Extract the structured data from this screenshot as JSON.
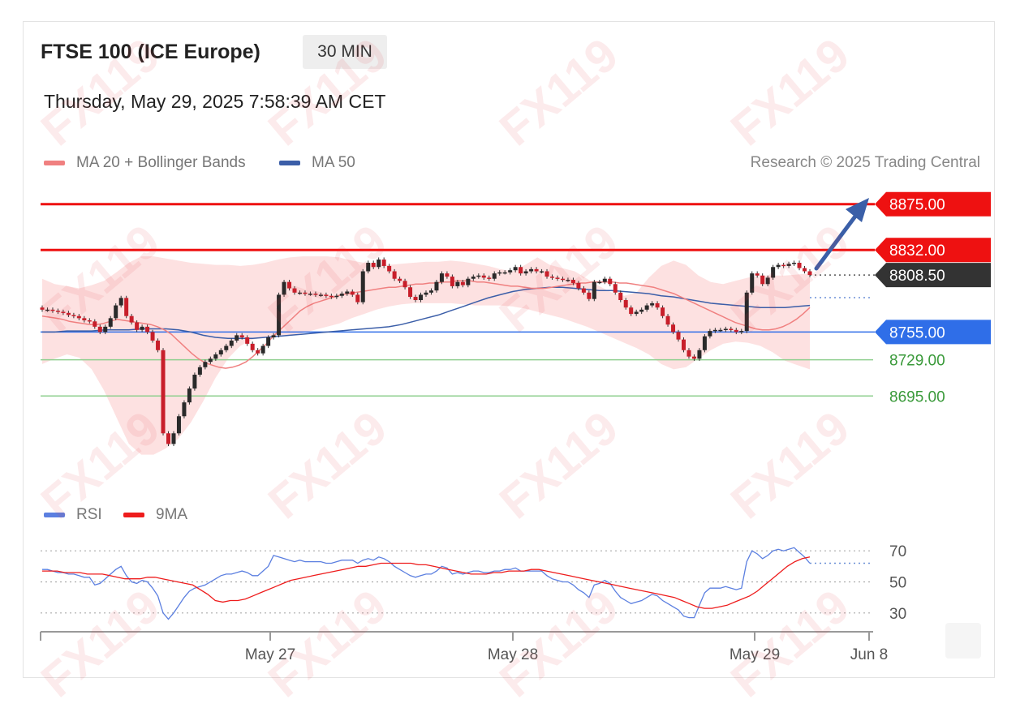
{
  "header": {
    "title": "FTSE 100 (ICE Europe)",
    "timeframe": "30 MIN",
    "datetime": "Thursday, May 29, 2025 7:58:39 AM CET",
    "research": "Research © 2025 Trading Central",
    "watermark": "FX119"
  },
  "legend": {
    "ma20": {
      "label": "MA 20 + Bollinger Bands",
      "color": "#f08080"
    },
    "ma50": {
      "label": "MA 50",
      "color": "#3b5ea8"
    },
    "rsi": {
      "label": "RSI",
      "color": "#5b7fe0"
    },
    "rsi_ma": {
      "label": "9MA",
      "color": "#ee1c1c"
    }
  },
  "chart_data": [
    {
      "type": "candlestick",
      "ylim": [
        8610,
        8890
      ],
      "x_ticks": [
        "May 27",
        "May 28",
        "May 29",
        "Jun 8"
      ],
      "levels": [
        {
          "value": 8875.0,
          "label": "8875.00",
          "kind": "resistance",
          "color": "#ee1111"
        },
        {
          "value": 8832.0,
          "label": "8832.00",
          "kind": "resistance",
          "color": "#ee1111"
        },
        {
          "value": 8808.5,
          "label": "8808.50",
          "kind": "last",
          "color": "#333333"
        },
        {
          "value": 8755.0,
          "label": "8755.00",
          "kind": "pivot",
          "color": "#2f6ee8"
        },
        {
          "value": 8729.0,
          "label": "8729.00",
          "kind": "support",
          "color": "#3a9a3a"
        },
        {
          "value": 8695.0,
          "label": "8695.00",
          "kind": "support",
          "color": "#3a9a3a"
        }
      ],
      "closes": [
        8776,
        8776,
        8775,
        8774,
        8773,
        8771,
        8770,
        8768,
        8766,
        8765,
        8760,
        8755,
        8760,
        8768,
        8780,
        8787,
        8770,
        8764,
        8757,
        8760,
        8755,
        8747,
        8738,
        8660,
        8650,
        8660,
        8676,
        8689,
        8702,
        8715,
        8722,
        8727,
        8730,
        8734,
        8738,
        8742,
        8747,
        8752,
        8750,
        8744,
        8738,
        8735,
        8742,
        8750,
        8752,
        8790,
        8802,
        8796,
        8792,
        8792,
        8791,
        8791,
        8790,
        8790,
        8789,
        8788,
        8789,
        8791,
        8793,
        8790,
        8783,
        8812,
        8820,
        8816,
        8823,
        8817,
        8812,
        8805,
        8803,
        8797,
        8788,
        8785,
        8790,
        8792,
        8794,
        8802,
        8810,
        8807,
        8798,
        8802,
        8799,
        8805,
        8807,
        8808,
        8806,
        8805,
        8810,
        8811,
        8811,
        8813,
        8816,
        8810,
        8812,
        8814,
        8812,
        8812,
        8807,
        8806,
        8805,
        8804,
        8804,
        8801,
        8796,
        8792,
        8786,
        8802,
        8802,
        8805,
        8800,
        8792,
        8785,
        8778,
        8772,
        8774,
        8776,
        8780,
        8782,
        8778,
        8770,
        8762,
        8755,
        8748,
        8738,
        8732,
        8730,
        8738,
        8751,
        8756,
        8757,
        8757,
        8758,
        8757,
        8755,
        8756,
        8792,
        8810,
        8808,
        8800,
        8806,
        8816,
        8818,
        8817,
        8819,
        8820,
        8815,
        8812,
        8808.5
      ],
      "ma20": [
        8770,
        8769,
        8768,
        8767,
        8765,
        8764,
        8763,
        8762,
        8762,
        8763,
        8765,
        8767,
        8766,
        8765,
        8764,
        8763,
        8762,
        8760,
        8757,
        8753,
        8747,
        8741,
        8735,
        8730,
        8726,
        8724,
        8722,
        8721,
        8722,
        8724,
        8727,
        8732,
        8738,
        8744,
        8751,
        8757,
        8763,
        8769,
        8775,
        8779,
        8782,
        8784,
        8786,
        8788,
        8790,
        8791,
        8792,
        8793,
        8794,
        8795,
        8796,
        8797,
        8797,
        8798,
        8799,
        8800,
        8800,
        8801,
        8801,
        8802,
        8802,
        8803,
        8803,
        8803,
        8802,
        8802,
        8801,
        8800,
        8799,
        8798,
        8798,
        8797,
        8796,
        8796,
        8796,
        8797,
        8798,
        8799,
        8800,
        8801,
        8801,
        8802,
        8802,
        8802,
        8802,
        8801,
        8801,
        8800,
        8799,
        8798,
        8797,
        8795,
        8793,
        8791,
        8788,
        8785,
        8782,
        8779,
        8776,
        8773,
        8770,
        8767,
        8764,
        8762,
        8760,
        8758,
        8757,
        8757,
        8758,
        8760,
        8763,
        8767,
        8772,
        8778
      ],
      "ma50": [
        8755,
        8755,
        8756,
        8756,
        8756,
        8757,
        8757,
        8757,
        8758,
        8758,
        8758,
        8757,
        8755,
        8752,
        8750,
        8749,
        8749,
        8749,
        8750,
        8751,
        8752,
        8753,
        8754,
        8755,
        8756,
        8757,
        8758,
        8759,
        8760,
        8762,
        8765,
        8768,
        8771,
        8775,
        8779,
        8783,
        8787,
        8790,
        8793,
        8795,
        8796,
        8797,
        8797,
        8796,
        8795,
        8794,
        8794,
        8793,
        8792,
        8791,
        8789,
        8788,
        8786,
        8784,
        8782,
        8781,
        8780,
        8779,
        8778,
        8778,
        8778,
        8779,
        8780
      ],
      "bollinger_upper": [
        8805,
        8800,
        8798,
        8796,
        8799,
        8803,
        8811,
        8820,
        8826,
        8826,
        8824,
        8822,
        8820,
        8819,
        8818,
        8818,
        8817,
        8818,
        8820,
        8823,
        8825,
        8826,
        8826,
        8826,
        8825,
        8822,
        8820,
        8818,
        8818,
        8819,
        8820,
        8821,
        8821,
        8822,
        8821,
        8819,
        8817,
        8814,
        8812,
        8818,
        8825,
        8818,
        8815,
        8812,
        8805,
        8798,
        8792,
        8789,
        8792,
        8806,
        8817,
        8822,
        8818,
        8808,
        8802,
        8800,
        8803,
        8806,
        8808,
        8808,
        8808,
        8809,
        8810
      ],
      "bollinger_lower": [
        8725,
        8730,
        8734,
        8731,
        8720,
        8700,
        8675,
        8650,
        8640,
        8640,
        8646,
        8655,
        8670,
        8690,
        8712,
        8730,
        8742,
        8748,
        8750,
        8752,
        8752,
        8754,
        8757,
        8760,
        8763,
        8768,
        8772,
        8776,
        8779,
        8781,
        8782,
        8782,
        8782,
        8782,
        8781,
        8780,
        8780,
        8780,
        8779,
        8777,
        8774,
        8771,
        8768,
        8764,
        8760,
        8755,
        8750,
        8745,
        8740,
        8734,
        8725,
        8720,
        8722,
        8730,
        8738,
        8744,
        8746,
        8745,
        8742,
        8736,
        8728,
        8724,
        8720
      ]
    },
    {
      "type": "line",
      "name_ref": "rsi",
      "ylim": [
        20,
        80
      ],
      "levels": [
        70,
        50,
        30
      ],
      "rsi": [
        58,
        58,
        57,
        56,
        56,
        55,
        55,
        54,
        53,
        53,
        48,
        49,
        52,
        55,
        58,
        60,
        54,
        50,
        49,
        51,
        50,
        46,
        41,
        30,
        26,
        30,
        35,
        40,
        44,
        46,
        47,
        48,
        50,
        52,
        54,
        55,
        55,
        56,
        57,
        56,
        54,
        54,
        57,
        60,
        67,
        66,
        65,
        64,
        63,
        64,
        63,
        63,
        63,
        63,
        62,
        62,
        63,
        64,
        64,
        64,
        62,
        64,
        65,
        64,
        66,
        65,
        63,
        60,
        58,
        56,
        54,
        53,
        54,
        55,
        55,
        57,
        60,
        59,
        55,
        56,
        55,
        56,
        57,
        57,
        56,
        56,
        57,
        57,
        58,
        58,
        59,
        57,
        57,
        57,
        57,
        57,
        54,
        52,
        51,
        50,
        50,
        48,
        45,
        43,
        40,
        48,
        49,
        51,
        49,
        44,
        40,
        38,
        36,
        37,
        38,
        40,
        42,
        41,
        38,
        36,
        34,
        32,
        28,
        27,
        27,
        35,
        43,
        46,
        46,
        46,
        47,
        46,
        45,
        46,
        63,
        70,
        68,
        65,
        67,
        70,
        71,
        70,
        71,
        72,
        69,
        66,
        62
      ],
      "rsi_9ma": [
        57,
        57,
        57,
        56,
        56,
        56,
        55,
        55,
        55,
        54,
        53,
        52,
        52,
        52,
        53,
        53,
        52,
        51,
        50,
        49,
        48,
        45,
        42,
        38,
        37,
        38,
        38,
        39,
        41,
        43,
        45,
        47,
        49,
        51,
        52,
        53,
        54,
        55,
        56,
        57,
        58,
        59,
        60,
        60,
        61,
        62,
        62,
        62,
        62,
        62,
        61,
        61,
        60,
        59,
        58,
        57,
        56,
        55,
        55,
        55,
        56,
        56,
        57,
        57,
        57,
        58,
        58,
        57,
        56,
        55,
        54,
        53,
        52,
        51,
        50,
        49,
        48,
        47,
        46,
        45,
        44,
        43,
        42,
        41,
        40,
        38,
        36,
        34,
        33,
        33,
        34,
        35,
        37,
        39,
        41,
        44,
        48,
        52,
        56,
        60,
        63,
        65,
        66
      ]
    }
  ]
}
